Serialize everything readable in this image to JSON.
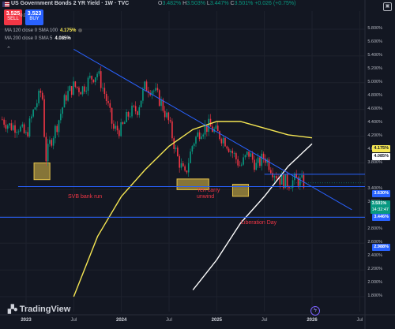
{
  "header": {
    "title": "US Government Bonds 2 YR Yield · 1W · TVC",
    "open_label": "O",
    "open": "3.482%",
    "high_label": "H",
    "high": "3.503%",
    "low_label": "L",
    "low": "3.447%",
    "close_label": "C",
    "close": "3.501%",
    "change": "+0.026 (+0.75%)"
  },
  "trade": {
    "sell_price": "3.525",
    "sell_label": "SELL",
    "buy_price": "3.523",
    "buy_label": "BUY",
    "spread": "-0.002"
  },
  "indicators": [
    {
      "label": "MA 120 close 0 SMA 100",
      "value": "4.175%",
      "color": "#f5e653"
    },
    {
      "label": "MA 200 close 0 SMA 5",
      "value": "4.085%",
      "color": "#ffffff"
    }
  ],
  "annotations": {
    "svb": "SVB bank run",
    "yen_line1": "Yen carry",
    "yen_line2": "unwind",
    "liberation": "Liberation Day"
  },
  "price_axis": {
    "ticks": [
      "5.800%",
      "5.600%",
      "5.400%",
      "5.200%",
      "5.000%",
      "4.800%",
      "4.600%",
      "4.400%",
      "4.200%",
      "4.000%",
      "3.800%",
      "3.400%",
      "3.200%",
      "2.800%",
      "2.600%",
      "2.400%",
      "2.200%",
      "2.000%",
      "1.800%"
    ],
    "tags": {
      "ma120": "4.175%",
      "ma200": "4.085%",
      "level_upper": "3.630%",
      "last": "3.501%",
      "countdown": "14:32:47",
      "level_lower": "3.446%",
      "level_bottom": "2.988%"
    }
  },
  "time_axis": {
    "labels": [
      "2023",
      "Jul",
      "2024",
      "Jul",
      "2025",
      "Jul",
      "2026",
      "Jul"
    ]
  },
  "branding": {
    "logo_text": "TradingView"
  },
  "colors": {
    "background": "#131722",
    "up": "#089981",
    "down": "#f23645",
    "trendline": "#2962ff",
    "ma120": "#f5e653",
    "ma200": "#ffffff",
    "highlight_box": "#e5c24a"
  },
  "chart_data": {
    "type": "candlestick",
    "title": "US Government Bonds 2 YR Yield",
    "interval": "1W",
    "ylabel": "%",
    "ylim": [
      1.8,
      5.9
    ],
    "x_range": [
      "2022-10",
      "2026-09"
    ],
    "x_labels": [
      "2023",
      "Jul",
      "2024",
      "Jul",
      "2025",
      "Jul",
      "2026",
      "Jul"
    ],
    "close_path": [
      [
        "2022-10",
        4.45
      ],
      [
        "2022-11",
        4.35
      ],
      [
        "2022-12",
        4.35
      ],
      [
        "2023-01",
        4.2
      ],
      [
        "2023-02",
        4.6
      ],
      [
        "2023-03",
        4.9
      ],
      [
        "2023-03-15",
        3.85
      ],
      [
        "2023-04",
        4.1
      ],
      [
        "2023-05",
        4.4
      ],
      [
        "2023-06",
        4.8
      ],
      [
        "2023-07",
        4.95
      ],
      [
        "2023-08",
        4.9
      ],
      [
        "2023-09",
        5.05
      ],
      [
        "2023-10",
        5.15
      ],
      [
        "2023-11",
        4.8
      ],
      [
        "2023-12",
        4.3
      ],
      [
        "2024-01",
        4.3
      ],
      [
        "2024-02",
        4.55
      ],
      [
        "2024-03",
        4.6
      ],
      [
        "2024-04",
        4.95
      ],
      [
        "2024-05",
        4.9
      ],
      [
        "2024-06",
        4.7
      ],
      [
        "2024-07",
        4.4
      ],
      [
        "2024-08",
        3.9
      ],
      [
        "2024-09",
        3.6
      ],
      [
        "2024-10",
        4.1
      ],
      [
        "2024-11",
        4.3
      ],
      [
        "2024-12",
        4.35
      ],
      [
        "2025-01",
        4.25
      ],
      [
        "2025-02",
        4.15
      ],
      [
        "2025-03",
        3.95
      ],
      [
        "2025-04",
        3.75
      ],
      [
        "2025-05",
        3.95
      ],
      [
        "2025-06",
        3.75
      ],
      [
        "2025-07",
        3.9
      ],
      [
        "2025-08",
        3.7
      ],
      [
        "2025-09",
        3.55
      ],
      [
        "2025-10",
        3.5
      ],
      [
        "2025-11",
        3.55
      ],
      [
        "2025-12",
        3.5
      ]
    ],
    "ma_120": [
      [
        "2023-07",
        1.8
      ],
      [
        "2023-10",
        2.7
      ],
      [
        "2024-01",
        3.3
      ],
      [
        "2024-04",
        3.7
      ],
      [
        "2024-07",
        4.05
      ],
      [
        "2024-10",
        4.3
      ],
      [
        "2025-01",
        4.42
      ],
      [
        "2025-04",
        4.42
      ],
      [
        "2025-07",
        4.32
      ],
      [
        "2025-10",
        4.22
      ],
      [
        "2026-01",
        4.175
      ]
    ],
    "ma_200": [
      [
        "2024-10",
        1.9
      ],
      [
        "2025-01",
        2.35
      ],
      [
        "2025-04",
        2.9
      ],
      [
        "2025-07",
        3.3
      ],
      [
        "2025-10",
        3.75
      ],
      [
        "2026-01",
        4.085
      ]
    ],
    "trendline": [
      [
        "2023-07",
        5.5
      ],
      [
        "2026-06",
        3.1
      ]
    ],
    "horizontal_levels": [
      3.63,
      3.446,
      2.988
    ],
    "level_segments": [
      {
        "value": 3.446,
        "from": "2022-12",
        "to": "2026-05"
      },
      {
        "value": 3.63,
        "from": "2025-07",
        "to": "2026-05"
      }
    ],
    "highlight_zones": [
      {
        "label": "SVB bank run",
        "x": [
          "2023-02",
          "2023-04"
        ],
        "y": [
          3.55,
          3.8
        ]
      },
      {
        "label": "Yen carry unwind",
        "x": [
          "2024-08",
          "2024-12"
        ],
        "y": [
          3.4,
          3.56
        ]
      },
      {
        "label": "Liberation Day",
        "x": [
          "2025-03",
          "2025-05"
        ],
        "y": [
          3.3,
          3.48
        ]
      }
    ],
    "last_price": 3.501
  }
}
